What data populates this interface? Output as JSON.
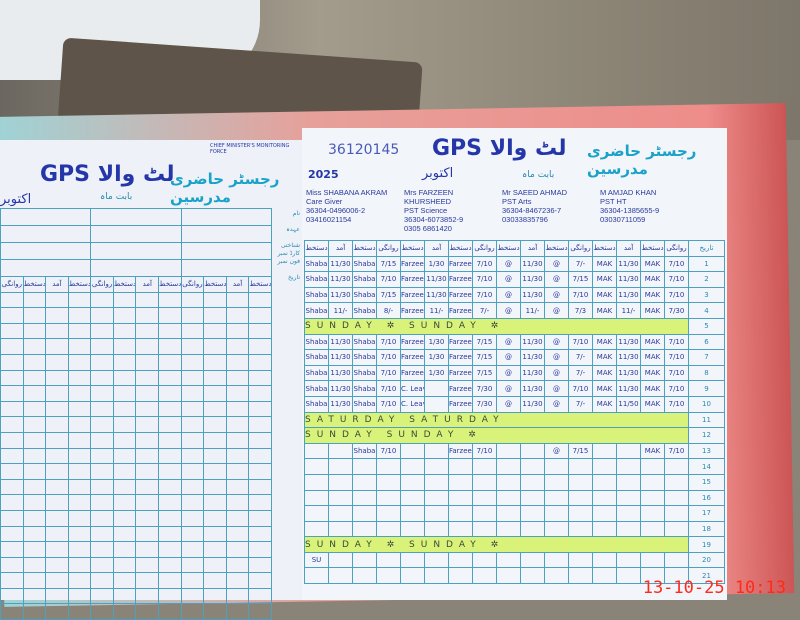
{
  "left_page": {
    "school_title": "GPS لٹ والا",
    "register_title": "رجسٹر حاضری مدرسین",
    "month_label": "بابت ماہ",
    "month_value": "اکتوبر",
    "logo_text": "CHIEF MINISTER'S MONITORING FORCE",
    "side_labels": [
      "نام",
      "عہدہ",
      "شناختی کارڈ نمبر",
      "فون نمبر",
      "تاریخ"
    ],
    "column_headers": [
      "روانگی",
      "دستخط",
      "آمد",
      "دستخط",
      "روانگی",
      "دستخط",
      "آمد",
      "دستخط",
      "روانگی",
      "دستخط",
      "آمد",
      "دستخط"
    ]
  },
  "right_page": {
    "emis_code": "36120145",
    "school_title": "GPS لٹ والا",
    "register_title": "رجسٹر حاضری مدرسین",
    "year": "2025",
    "month_label": "بابت ماہ",
    "month_value": "اکتوبر",
    "teachers": [
      {
        "name": "Miss SHABANA AKRAM",
        "designation": "Care Giver",
        "cnic": "36304-0496006-2",
        "phone": "03416021154"
      },
      {
        "name": "Mrs FARZEEN KHURSHEED",
        "designation": "PST Science",
        "cnic": "36304-6073852-9",
        "phone": "0305 6861420"
      },
      {
        "name": "Mr SAEED AHMAD",
        "designation": "PST Arts",
        "cnic": "36304-8467236-7",
        "phone": "03033835796"
      },
      {
        "name": "M AMJAD KHAN",
        "designation": "PST HT",
        "cnic": "36304-1385655-9",
        "phone": "03030711059"
      }
    ],
    "column_headers": [
      "دستخط",
      "آمد",
      "دستخط",
      "روانگی",
      "دستخط",
      "آمد",
      "دستخط",
      "روانگی",
      "دستخط",
      "آمد",
      "دستخط",
      "روانگی",
      "دستخط",
      "آمد",
      "دستخط",
      "روانگی"
    ],
    "date_header": "تاریخ",
    "rows": [
      {
        "date": "1",
        "cells": [
          "Shaba",
          "11/30",
          "Shaba",
          "7/15",
          "Farzeen",
          "1/30",
          "Farzeen",
          "7/10",
          "@",
          "11/30",
          "@",
          "7/-",
          "MAK",
          "11/30",
          "MAK",
          "7/10"
        ]
      },
      {
        "date": "2",
        "cells": [
          "Shaba",
          "11/30",
          "Shaba",
          "7/10",
          "Farzeen",
          "11/30",
          "Farzeen",
          "7/10",
          "@",
          "11/30",
          "@",
          "7/15",
          "MAK",
          "11/30",
          "MAK",
          "7/10"
        ]
      },
      {
        "date": "3",
        "cells": [
          "Shaba",
          "11/30",
          "Shaba",
          "7/15",
          "Farzeen",
          "11/30",
          "Farzeen",
          "7/10",
          "@",
          "11/30",
          "@",
          "7/10",
          "MAK",
          "11/30",
          "MAK",
          "7/10"
        ]
      },
      {
        "date": "4",
        "cells": [
          "Shaba",
          "11/-",
          "Shaba",
          "8/-",
          "Farzeen",
          "11/-",
          "Farzeen",
          "7/-",
          "@",
          "11/-",
          "@",
          "7/3",
          "MAK",
          "11/-",
          "MAK",
          "7/30"
        ]
      },
      {
        "date": "5",
        "holiday": "SUNDAY ✲ SUNDAY ✲"
      },
      {
        "date": "6",
        "cells": [
          "Shaba",
          "11/30",
          "Shaba",
          "7/10",
          "Farzeen",
          "1/30",
          "Farzeen",
          "7/15",
          "@",
          "11/30",
          "@",
          "7/10",
          "MAK",
          "11/30",
          "MAK",
          "7/10"
        ]
      },
      {
        "date": "7",
        "cells": [
          "Shaba",
          "11/30",
          "Shaba",
          "7/10",
          "Farzeen",
          "1/30",
          "Farzeen",
          "7/15",
          "@",
          "11/30",
          "@",
          "7/-",
          "MAK",
          "11/30",
          "MAK",
          "7/10"
        ]
      },
      {
        "date": "8",
        "cells": [
          "Shaba",
          "11/30",
          "Shaba",
          "7/10",
          "Farzeen",
          "1/30",
          "Farzeen",
          "7/15",
          "@",
          "11/30",
          "@",
          "7/-",
          "MAK",
          "11/30",
          "MAK",
          "7/10"
        ]
      },
      {
        "date": "9",
        "cells": [
          "Shaba",
          "11/30",
          "Shaba",
          "7/10",
          "C. Leave",
          "",
          "Farzeen",
          "7/30",
          "@",
          "11/30",
          "@",
          "7/10",
          "MAK",
          "11/30",
          "MAK",
          "7/10"
        ]
      },
      {
        "date": "10",
        "cells": [
          "Shaba",
          "11/30",
          "Shaba",
          "7/10",
          "C. Leave",
          "",
          "Farzeen",
          "7/30",
          "@",
          "11/30",
          "@",
          "7/-",
          "MAK",
          "11/50",
          "MAK",
          "7/10"
        ]
      },
      {
        "date": "11",
        "holiday": "SATURDAY SATURDAY"
      },
      {
        "date": "12",
        "holiday": "SUNDAY SUNDAY ✲"
      },
      {
        "date": "13",
        "cells": [
          "",
          "",
          "Shaba",
          "7/10",
          "",
          "",
          "Farzeen",
          "7/10",
          "",
          "",
          "@",
          "7/15",
          "",
          "",
          "MAK",
          "7/10"
        ]
      },
      {
        "date": "14",
        "cells": []
      },
      {
        "date": "15",
        "cells": []
      },
      {
        "date": "16",
        "cells": []
      },
      {
        "date": "17",
        "cells": []
      },
      {
        "date": "18",
        "cells": []
      },
      {
        "date": "19",
        "holiday": "SUNDAY ✲ SUNDAY ✲"
      },
      {
        "date": "20",
        "cells": [
          "SU"
        ]
      },
      {
        "date": "21",
        "cells": []
      }
    ]
  },
  "timestamp": "13-10-25  10:13",
  "colors": {
    "ink": "#2a3a9a",
    "grid": "#4ea0c0",
    "highlight": "#d9f27a",
    "stamp": "#ff2a1a"
  }
}
